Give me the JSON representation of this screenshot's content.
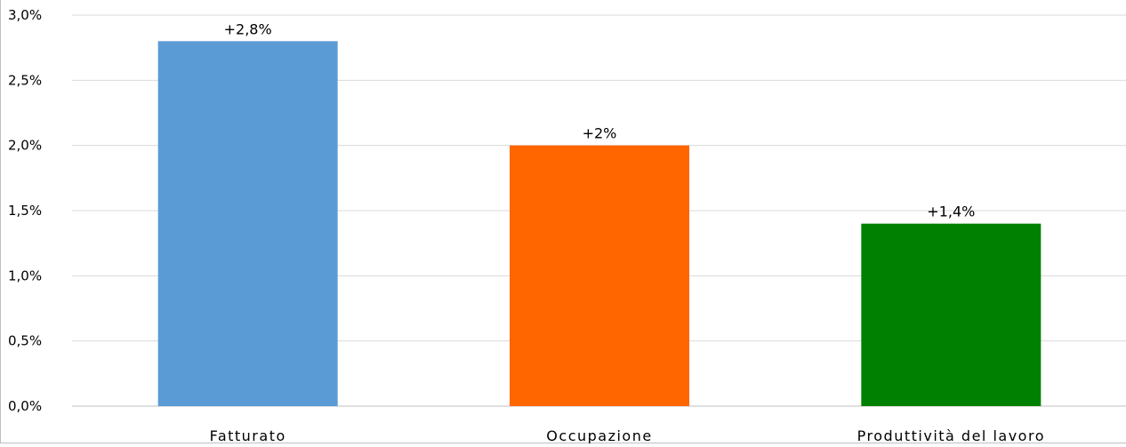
{
  "chart_data": {
    "type": "bar",
    "categories": [
      "Fatturato",
      "Occupazione",
      "Produttività del lavoro"
    ],
    "values": [
      2.8,
      2.0,
      1.4
    ],
    "data_labels": [
      "+2,8%",
      "+2%",
      "+1,4%"
    ],
    "colors": [
      "#5b9bd5",
      "#ff6600",
      "#008000"
    ],
    "ylim": [
      0,
      3.0
    ],
    "yticks": [
      0,
      0.5,
      1.0,
      1.5,
      2.0,
      2.5,
      3.0
    ],
    "ytick_labels": [
      "0,0%",
      "0,5%",
      "1,0%",
      "1,5%",
      "2,0%",
      "2,5%",
      "3,0%"
    ],
    "grid": true,
    "gridline_color": "#d9d9d9",
    "axis_line_color": "#bfbfbf"
  }
}
